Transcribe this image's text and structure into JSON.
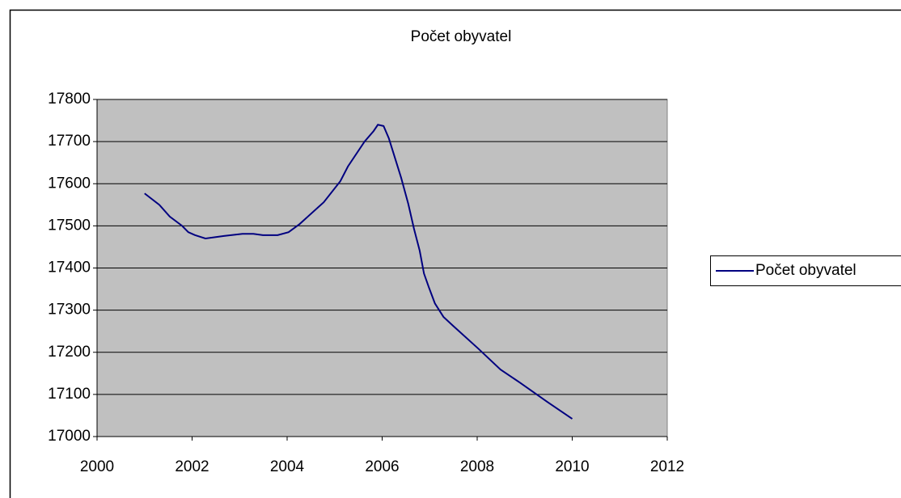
{
  "chart_data": {
    "type": "line",
    "title": "Počet obyvatel",
    "series": [
      {
        "name": "Počet obyvatel",
        "color": "#000080",
        "x": [
          2001.0,
          2001.31,
          2001.53,
          2001.79,
          2001.92,
          2002.06,
          2002.28,
          2002.67,
          2003.06,
          2003.29,
          2003.49,
          2003.8,
          2004.03,
          2004.26,
          2004.77,
          2005.12,
          2005.28,
          2005.63,
          2005.82,
          2005.91,
          2006.03,
          2006.14,
          2006.4,
          2006.55,
          2006.67,
          2006.79,
          2006.88,
          2006.98,
          2007.11,
          2007.29,
          2007.49,
          2008.02,
          2008.49,
          2008.9,
          2009.48,
          2010.0
        ],
        "values": [
          17577,
          17550,
          17522,
          17500,
          17485,
          17478,
          17470,
          17476,
          17481,
          17481,
          17478,
          17478,
          17485,
          17504,
          17556,
          17606,
          17641,
          17700,
          17725,
          17740,
          17737,
          17708,
          17614,
          17552,
          17493,
          17441,
          17387,
          17355,
          17316,
          17284,
          17263,
          17209,
          17159,
          17128,
          17082,
          17042
        ]
      }
    ],
    "xlim": [
      2000,
      2012
    ],
    "xticks": [
      2000,
      2002,
      2004,
      2006,
      2008,
      2010,
      2012
    ],
    "ylim": [
      17000,
      17800
    ],
    "yticks": [
      17000,
      17100,
      17200,
      17300,
      17400,
      17500,
      17600,
      17700,
      17800
    ],
    "grid": true,
    "legend": "right"
  }
}
